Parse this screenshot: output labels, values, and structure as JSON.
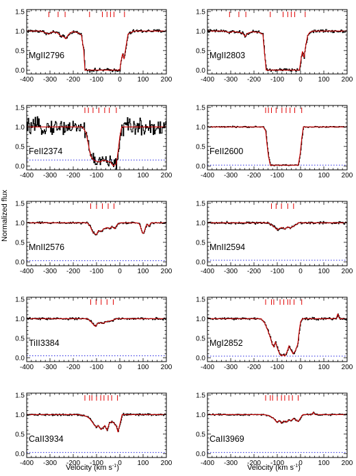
{
  "figure": {
    "ylabel": "Normalized flux",
    "xlabel_left": "Velocity (km s",
    "xlabel_right": "Velocity (km s",
    "xlabel_sup": "-1",
    "xlabel_close": ")"
  },
  "chart_data": [
    {
      "type": "line",
      "label": "MgII2796",
      "xlim": [
        -400,
        200
      ],
      "ylim": [
        -0.1,
        1.55
      ],
      "xticks": [
        -400,
        -300,
        -200,
        -100,
        0,
        100,
        200
      ],
      "yticks": [
        0.0,
        0.5,
        1.0,
        1.5
      ],
      "tick_labels_y": [
        "0.0",
        "0.5",
        "1.0",
        "1.5"
      ],
      "components": [
        -305,
        -265,
        -235,
        -130,
        -75,
        -55,
        -40,
        -25,
        20
      ],
      "profile": {
        "x": [
          -400,
          -340,
          -320,
          -305,
          -290,
          -270,
          -255,
          -240,
          -232,
          -222,
          -205,
          -185,
          -165,
          -155,
          -150,
          0,
          5,
          12,
          18,
          25,
          35,
          60,
          200
        ],
        "y": [
          1.0,
          1.0,
          0.96,
          0.92,
          0.98,
          0.96,
          0.88,
          0.85,
          0.8,
          0.9,
          0.98,
          0.97,
          0.9,
          0.5,
          0.0,
          0.0,
          0.22,
          0.42,
          0.28,
          0.55,
          0.92,
          1.0,
          1.0
        ]
      },
      "noise": 0.03,
      "error_level": null
    },
    {
      "type": "line",
      "label": "MgII2803",
      "xlim": [
        -400,
        200
      ],
      "ylim": [
        -0.1,
        1.55
      ],
      "xticks": [
        -400,
        -300,
        -200,
        -100,
        0,
        100,
        200
      ],
      "yticks": [
        0.0,
        0.5,
        1.0,
        1.5
      ],
      "tick_labels_y": [
        "0.0",
        "0.5",
        "1.0",
        "1.5"
      ],
      "components": [
        -305,
        -265,
        -235,
        -130,
        -75,
        -55,
        -40,
        -25,
        20
      ],
      "profile": {
        "x": [
          -400,
          -330,
          -305,
          -290,
          -270,
          -250,
          -238,
          -228,
          -210,
          -180,
          -162,
          -155,
          -148,
          -5,
          0,
          8,
          15,
          22,
          30,
          40,
          55,
          200
        ],
        "y": [
          1.0,
          1.0,
          0.96,
          0.99,
          0.97,
          0.95,
          0.86,
          0.94,
          0.98,
          0.97,
          0.92,
          0.45,
          0.0,
          0.0,
          0.2,
          0.48,
          0.32,
          0.62,
          0.88,
          0.97,
          1.0,
          1.0
        ]
      },
      "noise": 0.03,
      "error_level": null
    },
    {
      "type": "line",
      "label": "FeII2374",
      "xlim": [
        -400,
        200
      ],
      "ylim": [
        -0.1,
        1.55
      ],
      "xticks": [
        -400,
        -300,
        -200,
        -100,
        0,
        100,
        200
      ],
      "yticks": [
        0.0,
        0.5,
        1.0,
        1.5
      ],
      "tick_labels_y": [
        "0.0",
        "0.5",
        "1.0",
        "1.5"
      ],
      "components": [
        -150,
        -135,
        -115,
        -90,
        -65,
        -45,
        -15
      ],
      "profile": {
        "x": [
          -400,
          -160,
          -145,
          -135,
          -125,
          -112,
          -100,
          -85,
          -70,
          -55,
          -40,
          -28,
          -15,
          -8,
          0,
          8,
          200
        ],
        "y": [
          1.0,
          1.0,
          0.85,
          0.55,
          0.25,
          0.15,
          0.12,
          0.1,
          0.15,
          0.12,
          0.1,
          0.0,
          0.05,
          0.35,
          0.75,
          1.0,
          1.0
        ]
      },
      "noise": 0.13,
      "error_level": 0.15
    },
    {
      "type": "line",
      "label": "FeII2600",
      "xlim": [
        -400,
        200
      ],
      "ylim": [
        -0.1,
        1.55
      ],
      "xticks": [
        -400,
        -300,
        -200,
        -100,
        0,
        100,
        200
      ],
      "yticks": [
        0.0,
        0.5,
        1.0,
        1.5
      ],
      "tick_labels_y": [
        "0.0",
        "0.5",
        "1.0",
        "1.5"
      ],
      "components": [
        -150,
        -138,
        -125,
        -105,
        -80,
        -62,
        -45,
        -25,
        5
      ],
      "profile": {
        "x": [
          -400,
          -160,
          -150,
          -145,
          -138,
          -130,
          -10,
          -2,
          5,
          12,
          200
        ],
        "y": [
          1.0,
          1.0,
          0.9,
          0.6,
          0.25,
          0.02,
          0.02,
          0.3,
          0.7,
          1.0,
          1.0
        ]
      },
      "noise": 0.012,
      "error_level": 0.02
    },
    {
      "type": "line",
      "label": "MnII2576",
      "xlim": [
        -400,
        200
      ],
      "ylim": [
        -0.1,
        1.55
      ],
      "xticks": [
        -400,
        -300,
        -200,
        -100,
        0,
        100,
        200
      ],
      "yticks": [
        0.0,
        0.5,
        1.0,
        1.5
      ],
      "tick_labels_y": [
        "0.0",
        "0.5",
        "1.0",
        "1.5"
      ],
      "components": [
        -125,
        -100,
        -75,
        -50,
        -25
      ],
      "profile": {
        "x": [
          -400,
          -140,
          -128,
          -118,
          -108,
          -100,
          -92,
          -80,
          -68,
          -55,
          -45,
          -35,
          -22,
          -12,
          0,
          200
        ],
        "y": [
          1.0,
          1.0,
          0.92,
          0.78,
          0.72,
          0.7,
          0.8,
          0.78,
          0.85,
          0.88,
          0.85,
          0.9,
          0.85,
          0.95,
          1.0,
          1.0
        ]
      },
      "noise": 0.018,
      "error_level": 0.03,
      "extra_absorption": [
        {
          "center": 100,
          "width": 8,
          "depth": 0.27
        },
        {
          "center": 125,
          "width": 4,
          "depth": 0.08
        }
      ]
    },
    {
      "type": "line",
      "label": "MnII2594",
      "xlim": [
        -400,
        200
      ],
      "ylim": [
        -0.1,
        1.55
      ],
      "xticks": [
        -400,
        -300,
        -200,
        -100,
        0,
        100,
        200
      ],
      "yticks": [
        0.0,
        0.5,
        1.0,
        1.5
      ],
      "tick_labels_y": [
        "0.0",
        "0.5",
        "1.0",
        "1.5"
      ],
      "components": [
        -125,
        -105,
        -82,
        -55,
        -30
      ],
      "profile": {
        "x": [
          -400,
          -140,
          -125,
          -110,
          -100,
          -90,
          -80,
          -68,
          -55,
          -45,
          -35,
          -22,
          -10,
          200
        ],
        "y": [
          1.0,
          1.0,
          0.95,
          0.88,
          0.82,
          0.86,
          0.88,
          0.84,
          0.9,
          0.86,
          0.9,
          0.94,
          1.0,
          1.0
        ]
      },
      "noise": 0.022,
      "error_level": 0.04
    },
    {
      "type": "line",
      "label": "TiII3384",
      "xlim": [
        -400,
        200
      ],
      "ylim": [
        -0.1,
        1.55
      ],
      "xticks": [
        -400,
        -300,
        -200,
        -100,
        0,
        100,
        200
      ],
      "yticks": [
        0.0,
        0.5,
        1.0,
        1.5
      ],
      "tick_labels_y": [
        "0.0",
        "0.5",
        "1.0",
        "1.5"
      ],
      "components": [
        -125,
        -102,
        -80,
        -55,
        -28
      ],
      "profile": {
        "x": [
          -400,
          -140,
          -128,
          -115,
          -105,
          -95,
          -85,
          -72,
          -60,
          -45,
          -30,
          -15,
          200
        ],
        "y": [
          1.0,
          1.0,
          0.95,
          0.86,
          0.8,
          0.88,
          0.9,
          0.88,
          0.92,
          0.94,
          0.96,
          1.0,
          1.0
        ]
      },
      "noise": 0.02,
      "error_level": 0.05
    },
    {
      "type": "line",
      "label": "MgI2852",
      "xlim": [
        -400,
        200
      ],
      "ylim": [
        -0.1,
        1.55
      ],
      "xticks": [
        -400,
        -300,
        -200,
        -100,
        0,
        100,
        200
      ],
      "yticks": [
        0.0,
        0.5,
        1.0,
        1.5
      ],
      "tick_labels_y": [
        "0.0",
        "0.5",
        "1.0",
        "1.5"
      ],
      "components": [
        -150,
        -125,
        -115,
        -88,
        -72,
        -55,
        -45,
        -28,
        5
      ],
      "profile": {
        "x": [
          -400,
          -170,
          -155,
          -142,
          -130,
          -122,
          -115,
          -108,
          -100,
          -90,
          -82,
          -75,
          -68,
          -58,
          -50,
          -42,
          -32,
          -22,
          -12,
          -5,
          0,
          8,
          15,
          200
        ],
        "y": [
          1.0,
          1.0,
          0.9,
          0.72,
          0.52,
          0.35,
          0.28,
          0.4,
          0.25,
          0.1,
          0.05,
          0.08,
          0.04,
          0.15,
          0.3,
          0.2,
          0.1,
          0.18,
          0.35,
          0.72,
          0.92,
          1.0,
          1.0,
          1.0
        ]
      },
      "noise": 0.022,
      "error_level": 0.04,
      "extra_absorption": [
        {
          "center": 160,
          "width": 3,
          "depth": -0.12
        }
      ]
    },
    {
      "type": "line",
      "label": "CaII3934",
      "xlim": [
        -400,
        200
      ],
      "ylim": [
        -0.1,
        1.55
      ],
      "xticks": [
        -400,
        -300,
        -200,
        -100,
        0,
        100,
        200
      ],
      "yticks": [
        0.0,
        0.5,
        1.0,
        1.5
      ],
      "tick_labels_y": [
        "0.0",
        "0.5",
        "1.0",
        "1.5"
      ],
      "components": [
        -150,
        -130,
        -120,
        -100,
        -82,
        -68,
        -50,
        -35,
        -10
      ],
      "profile": {
        "x": [
          -400,
          -180,
          -160,
          -145,
          -130,
          -115,
          -108,
          -100,
          -92,
          -82,
          -72,
          -65,
          -55,
          -45,
          -35,
          -25,
          -15,
          -8,
          0,
          10,
          200
        ],
        "y": [
          1.0,
          1.0,
          0.98,
          0.96,
          0.9,
          0.78,
          0.72,
          0.68,
          0.72,
          0.62,
          0.66,
          0.72,
          0.6,
          0.78,
          0.82,
          0.78,
          0.7,
          0.55,
          0.75,
          1.0,
          1.0
        ]
      },
      "noise": 0.018,
      "error_level": 0.03
    },
    {
      "type": "line",
      "label": "CaII3969",
      "xlim": [
        -400,
        200
      ],
      "ylim": [
        -0.1,
        1.55
      ],
      "xticks": [
        -400,
        -300,
        -200,
        -100,
        0,
        100,
        200
      ],
      "yticks": [
        0.0,
        0.5,
        1.0,
        1.5
      ],
      "tick_labels_y": [
        "0.0",
        "0.5",
        "1.0",
        "1.5"
      ],
      "components": [
        -150,
        -130,
        -120,
        -100,
        -82,
        -68,
        -50,
        -35,
        -10
      ],
      "profile": {
        "x": [
          -400,
          -160,
          -140,
          -125,
          -112,
          -102,
          -92,
          -82,
          -72,
          -62,
          -52,
          -42,
          -30,
          -20,
          -10,
          0,
          10,
          200
        ],
        "y": [
          1.0,
          1.0,
          0.98,
          0.94,
          0.88,
          0.8,
          0.85,
          0.78,
          0.84,
          0.8,
          0.86,
          0.84,
          0.9,
          0.86,
          0.82,
          0.92,
          1.0,
          1.0
        ]
      },
      "noise": 0.016,
      "error_level": 0.03,
      "extra_absorption": [
        {
          "center": 55,
          "width": 3,
          "depth": -0.06
        }
      ]
    }
  ],
  "colors": {
    "data": "#000000",
    "model": "#d00000",
    "ticks_component": "#e00000",
    "error": "#2020e0",
    "axes": "#000000"
  }
}
